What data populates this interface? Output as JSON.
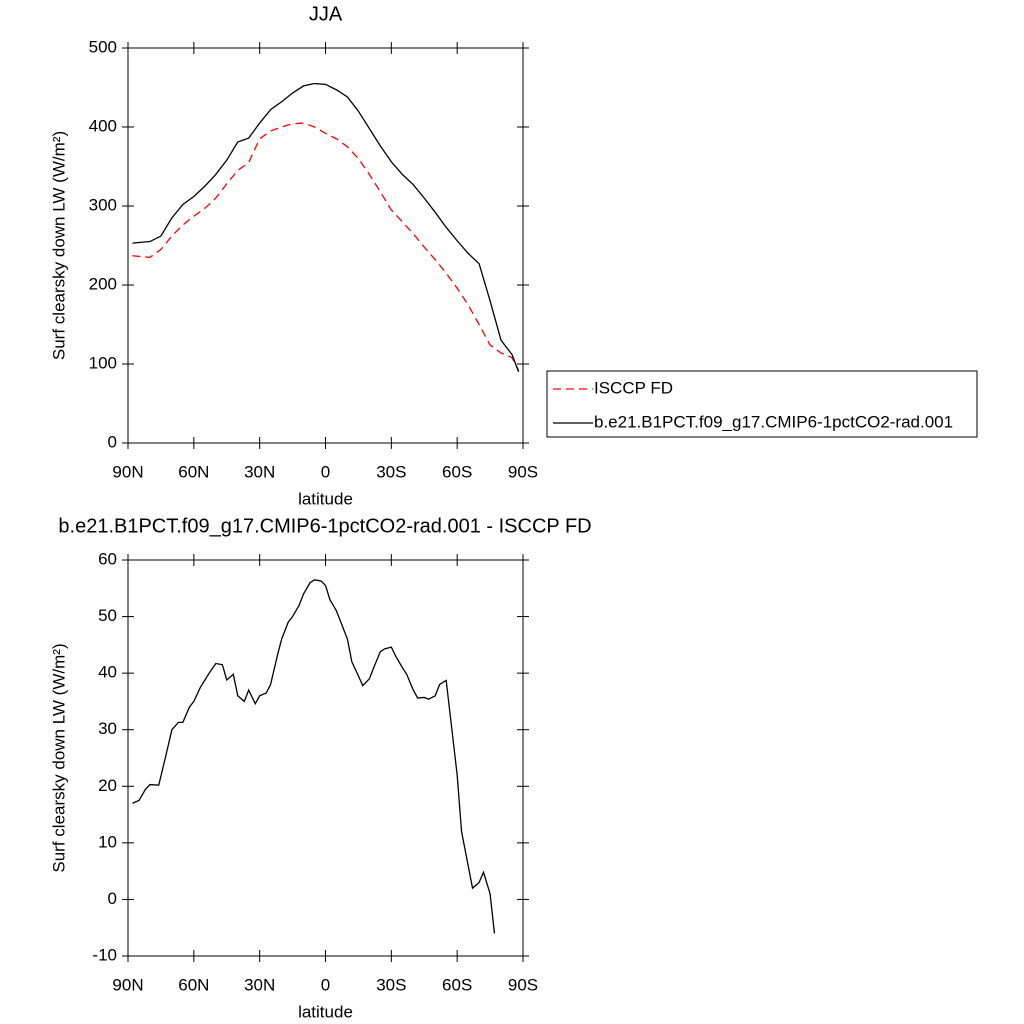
{
  "chart_data": [
    {
      "type": "line",
      "title": "JJA",
      "x_label": "latitude",
      "y_label": "Surf clearsky down LW (W/m²)",
      "x": [
        88,
        80,
        75,
        70,
        65,
        60,
        55,
        50,
        45,
        40,
        35,
        30,
        25,
        20,
        15,
        10,
        5,
        0,
        -5,
        -10,
        -15,
        -20,
        -25,
        -30,
        -35,
        -40,
        -45,
        -50,
        -55,
        -60,
        -65,
        -70,
        -75,
        -80,
        -85,
        -88
      ],
      "series": [
        {
          "name": "ISCCP FD",
          "color": "#ff0000",
          "dashed": true,
          "values": [
            237,
            235,
            245,
            262,
            276,
            287,
            297,
            310,
            328,
            345,
            355,
            385,
            395,
            400,
            404,
            405,
            400,
            392,
            385,
            375,
            360,
            340,
            318,
            295,
            280,
            265,
            248,
            232,
            215,
            196,
            175,
            150,
            124,
            114,
            108,
            92
          ]
        },
        {
          "name": "b.e21.B1PCT.f09_g17.CMIP6-1pctCO2-rad.001",
          "color": "#000000",
          "dashed": false,
          "values": [
            253,
            255,
            262,
            285,
            302,
            312,
            325,
            340,
            358,
            381,
            386,
            405,
            422,
            432,
            443,
            452,
            455,
            454,
            447,
            438,
            420,
            398,
            376,
            356,
            340,
            327,
            310,
            292,
            273,
            256,
            240,
            227,
            180,
            130,
            112,
            90
          ]
        }
      ],
      "xlim": [
        90,
        -90
      ],
      "xticks": [
        {
          "value": 90,
          "label": "90N"
        },
        {
          "value": 60,
          "label": "60N"
        },
        {
          "value": 30,
          "label": "30N"
        },
        0,
        {
          "value": -30,
          "label": "30S"
        },
        {
          "value": -60,
          "label": "60S"
        },
        {
          "value": -90,
          "label": "90S"
        }
      ],
      "ylim": [
        0,
        500
      ],
      "yticks": [
        0,
        100,
        200,
        300,
        400,
        500
      ],
      "legend": "right"
    },
    {
      "type": "line",
      "title": "b.e21.B1PCT.f09_g17.CMIP6-1pctCO2-rad.001 - ISCCP FD",
      "x_label": "latitude",
      "y_label": "Surf clearsky down LW (W/m²)",
      "x": [
        88,
        85,
        82,
        80,
        76,
        73,
        70,
        67,
        65,
        62,
        60,
        57,
        53,
        50,
        47,
        45,
        42,
        40,
        37,
        35,
        32,
        30,
        27,
        25,
        22,
        20,
        17,
        15,
        12,
        10,
        7,
        5,
        2,
        0,
        -2,
        -5,
        -7,
        -10,
        -12,
        -15,
        -17,
        -20,
        -22,
        -25,
        -27,
        -30,
        -32,
        -35,
        -37,
        -40,
        -42,
        -45,
        -47,
        -50,
        -52,
        -55,
        -57,
        -60,
        -62,
        -65,
        -67,
        -70,
        -72,
        -75,
        -77
      ],
      "color": "#000000",
      "values": [
        17,
        17.5,
        19.5,
        20.3,
        20.2,
        25,
        30,
        31.3,
        31.3,
        34,
        35,
        37.5,
        40,
        41.7,
        41.5,
        38.8,
        39.8,
        36,
        35,
        37,
        34.6,
        36,
        36.5,
        38,
        43,
        46,
        49,
        50,
        52,
        54,
        56,
        56.5,
        56.3,
        55.5,
        53,
        51,
        49,
        46,
        42,
        39.5,
        37.8,
        39,
        41,
        43.8,
        44.3,
        44.6,
        43,
        41,
        39.8,
        37,
        35.6,
        35.7,
        35.4,
        36,
        38,
        38.7,
        32,
        22,
        12,
        6,
        2,
        3,
        4.8,
        1,
        -6
      ],
      "xlim": [
        90,
        -90
      ],
      "xticks": [
        {
          "value": 90,
          "label": "90N"
        },
        {
          "value": 60,
          "label": "60N"
        },
        {
          "value": 30,
          "label": "30N"
        },
        0,
        {
          "value": -30,
          "label": "30S"
        },
        {
          "value": -60,
          "label": "60S"
        },
        {
          "value": -90,
          "label": "90S"
        }
      ],
      "ylim": [
        -10,
        60
      ],
      "yticks": [
        -10,
        0,
        10,
        20,
        30,
        40,
        50,
        60
      ]
    }
  ]
}
